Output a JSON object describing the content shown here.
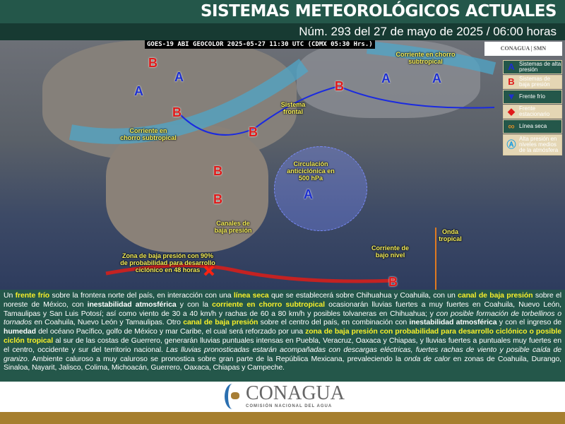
{
  "header": {
    "title": "SISTEMAS METEOROLÓGICOS ACTUALES",
    "subtitle": "Núm. 293 del 27 de mayo de 2025 / 06:00 horas"
  },
  "map": {
    "satellite_caption": "GOES-19 ABI GEOCOLOR 2025-05-27 11:30 UTC (CDMX  05:30 Hrs.)",
    "logos": "CONAGUA | SMN",
    "labels": {
      "chorro": "Corriente en chorro subtropical",
      "sistema_frontal": "Sistema frontal",
      "circulacion": "Circulación anticiclónica en 500 hPa",
      "canales": "Canales de baja presión",
      "zona": "Zona de baja presión con 90% de probabilidad para desarrollo ciclónico en 48 horas",
      "onda": "Onda tropical",
      "bajo_nivel": "Corriente de bajo nivel",
      "chorro_ne": "Corriente en chorro subtropical"
    },
    "high": "A",
    "low": "B",
    "legend": [
      {
        "icon": "A",
        "label": "Sistemas de alta presión"
      },
      {
        "icon": "B",
        "label": "Sistemas de baja presión"
      },
      {
        "icon": "▼",
        "label": "Frente frío"
      },
      {
        "icon": "◆",
        "label": "Frente estacionario"
      },
      {
        "icon": "∞",
        "label": "Línea seca"
      },
      {
        "icon": "Ⓐ",
        "label": "Alta presión en niveles medios de la atmósfera"
      }
    ],
    "colors": {
      "high": "#1d2fd0",
      "low": "#e01a1a",
      "label": "#f5ee5a",
      "header": "#24574a"
    }
  },
  "text": {
    "p1": "Un ",
    "h1": "frente frío",
    "p2": " sobre la frontera norte del país, en interacción con una ",
    "h2": "línea seca",
    "p3": " que se establecerá sobre Chihuahua y Coahuila, con un ",
    "h3": "canal de baja presión",
    "p4": " sobre el noreste de México, con ",
    "s1": "inestabilidad atmosférica",
    "p5": " y con la ",
    "h4": "corriente en chorro subtropical",
    "p6": " ocasionarán lluvias fuertes a muy fuertes en Coahuila, Nuevo León, Tamaulipas y San Luis Potosí; así como viento de 30 a 40 km/h y rachas de 60 a 80 km/h y posibles tolvaneras en Chihuahua; y ",
    "i1": "con posible formación de torbellinos o tornados",
    "p7": " en Coahuila, Nuevo León y Tamaulipas. Otro ",
    "h5": "canal de baja presión",
    "p8": " sobre el centro del país, en combinación con ",
    "s2": "inestabilidad atmosférica",
    "p9": " y con el ingreso de ",
    "s3": "humedad",
    "p10": " del océano Pacífico, golfo de México y mar Caribe, el cual será reforzado por una ",
    "h6": "zona de baja presión con probabilidad para desarrollo ciclónico o posible ciclón tropical",
    "p11": " al sur de las costas de Guerrero, generarán lluvias puntuales intensas en Puebla, Veracruz, Oaxaca y Chiapas, y lluvias fuertes a puntuales muy fuertes en el centro, occidente y sur del territorio nacional. ",
    "i2": "Las lluvias pronosticadas estarán acompañadas con descargas eléctricas, fuertes rachas de viento y posible caída de granizo",
    "p12": ". Ambiente caluroso a muy caluroso se pronostica sobre gran parte de la República Mexicana, prevaleciendo la ",
    "i3": "onda de calor",
    "p13": " en zonas de Coahuila, Durango, Sinaloa, Nayarit, Jalisco, Colima, Michoacán, Guerrero, Oaxaca, Chiapas y Campeche."
  },
  "footer": {
    "brand": "CONAGUA",
    "brand_sub": "COMISIÓN NACIONAL DEL AGUA"
  }
}
